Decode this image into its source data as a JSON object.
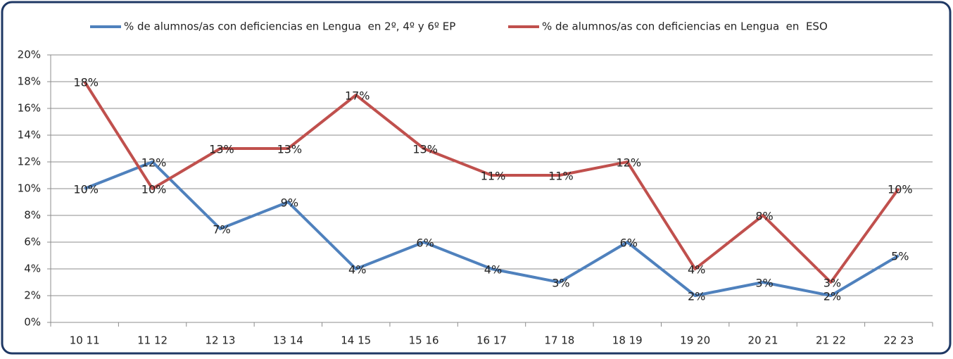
{
  "chart_data": {
    "type": "line",
    "categories": [
      "10 11",
      "11 12",
      "12 13",
      "13 14",
      "14 15",
      "15 16",
      "16 17",
      "17 18",
      "18 19",
      "19 20",
      "20 21",
      "21 22",
      "22 23"
    ],
    "series": [
      {
        "name": "% de alumnos/as con deficiencias en Lengua  en 2º, 4º y 6º EP",
        "color": "#4f81bd",
        "values": [
          10,
          12,
          7,
          9,
          4,
          6,
          4,
          3,
          6,
          2,
          3,
          2,
          5
        ],
        "value_labels": [
          "10%",
          "12%",
          "7%",
          "9%",
          "4%",
          "6%",
          "4%",
          "3%",
          "6%",
          "2%",
          "3%",
          "2%",
          "5%"
        ]
      },
      {
        "name": "% de alumnos/as con deficiencias en Lengua  en  ESO",
        "color": "#c0504d",
        "values": [
          18,
          10,
          13,
          13,
          17,
          13,
          11,
          11,
          12,
          4,
          8,
          3,
          10
        ],
        "value_labels": [
          "18%",
          "10%",
          "13%",
          "13%",
          "17%",
          "13%",
          "11%",
          "11%",
          "12%",
          "4%",
          "8%",
          "3%",
          "10%"
        ]
      }
    ],
    "ylim": [
      0,
      20
    ],
    "yticks": [
      {
        "value": 0,
        "label": "0%"
      },
      {
        "value": 2,
        "label": "2%"
      },
      {
        "value": 4,
        "label": "4%"
      },
      {
        "value": 6,
        "label": "6%"
      },
      {
        "value": 8,
        "label": "8%"
      },
      {
        "value": 10,
        "label": "10%"
      },
      {
        "value": 12,
        "label": "12%"
      },
      {
        "value": 14,
        "label": "14%"
      },
      {
        "value": 16,
        "label": "16%"
      },
      {
        "value": 18,
        "label": "18%"
      },
      {
        "value": 20,
        "label": "20%"
      }
    ],
    "grid": true,
    "legend": "top"
  }
}
